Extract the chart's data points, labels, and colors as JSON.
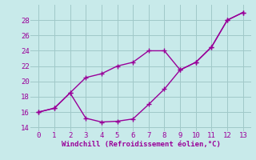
{
  "temp_x": [
    0,
    1,
    2,
    3,
    4,
    5,
    6,
    7,
    8,
    9,
    10,
    11,
    12,
    13
  ],
  "temp_y": [
    16,
    16.5,
    18.5,
    20.5,
    21.0,
    22.0,
    22.5,
    24.0,
    24.0,
    21.5,
    22.5,
    24.5,
    28.0,
    29.0
  ],
  "wind_x": [
    0,
    1,
    2,
    3,
    4,
    5,
    6,
    7,
    8,
    9,
    10,
    11,
    12,
    13
  ],
  "wind_y": [
    16,
    16.5,
    18.5,
    15.2,
    14.7,
    14.8,
    15.1,
    17.0,
    19.0,
    21.5,
    22.5,
    24.5,
    28.0,
    29.0
  ],
  "line_color": "#990099",
  "bg_color": "#c8eaea",
  "grid_color": "#a0c8c8",
  "xlabel": "Windchill (Refroidissement éolien,°C)",
  "xlabel_color": "#990099",
  "xlim": [
    -0.5,
    13.5
  ],
  "ylim": [
    13.5,
    30.0
  ],
  "yticks": [
    14,
    16,
    18,
    20,
    22,
    24,
    26,
    28
  ],
  "xticks": [
    0,
    1,
    2,
    3,
    4,
    5,
    6,
    7,
    8,
    9,
    10,
    11,
    12,
    13
  ],
  "marker": "+",
  "linewidth": 1.0,
  "markersize": 4,
  "markeredgewidth": 1.0
}
